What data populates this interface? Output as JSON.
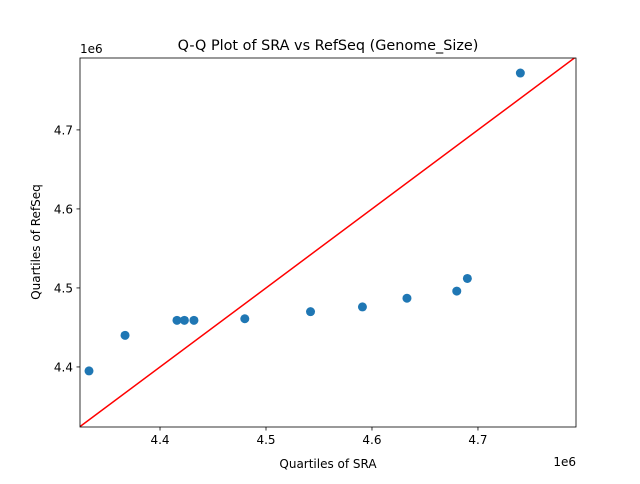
{
  "chart_data": {
    "type": "scatter",
    "title": "Q-Q Plot of SRA vs RefSeq (Genome_Size)",
    "xlabel": "Quartiles of SRA",
    "ylabel": "Quartiles of RefSeq",
    "x_offset_label": "1e6",
    "y_offset_label": "1e6",
    "xlim": [
      4.3245,
      4.7925
    ],
    "ylim": [
      4.324,
      4.791
    ],
    "xticks": [
      4.4,
      4.5,
      4.6,
      4.7
    ],
    "yticks": [
      4.4,
      4.5,
      4.6,
      4.7
    ],
    "xtick_labels": [
      "4.4",
      "4.5",
      "4.6",
      "4.7"
    ],
    "ytick_labels": [
      "4.4",
      "4.5",
      "4.6",
      "4.7"
    ],
    "grid": false,
    "points": [
      {
        "x": 4.333,
        "y": 4.395
      },
      {
        "x": 4.367,
        "y": 4.44
      },
      {
        "x": 4.416,
        "y": 4.459
      },
      {
        "x": 4.423,
        "y": 4.459
      },
      {
        "x": 4.432,
        "y": 4.459
      },
      {
        "x": 4.48,
        "y": 4.461
      },
      {
        "x": 4.542,
        "y": 4.47
      },
      {
        "x": 4.591,
        "y": 4.476
      },
      {
        "x": 4.633,
        "y": 4.487
      },
      {
        "x": 4.68,
        "y": 4.496
      },
      {
        "x": 4.69,
        "y": 4.512
      },
      {
        "x": 4.74,
        "y": 4.772
      }
    ],
    "reference_line": "y = x",
    "point_color": "#1f77b4",
    "line_color": "#ff0000"
  }
}
